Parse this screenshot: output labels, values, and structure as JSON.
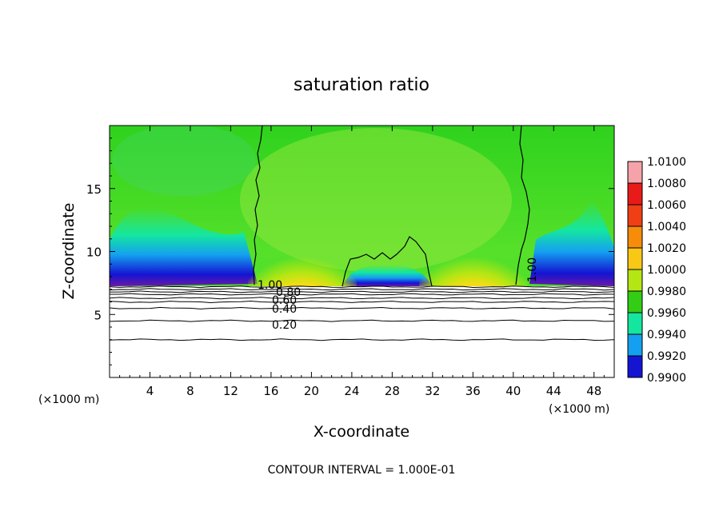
{
  "chart_data": {
    "type": "heatmap",
    "title": "saturation ratio",
    "xlabel": "X-coordinate",
    "ylabel": "Z-coordinate",
    "x_unit": "(×1000 m)",
    "x_unit_right": "(×1000 m)",
    "xlim": [
      0,
      50
    ],
    "ylim": [
      0,
      20
    ],
    "x_ticks": [
      "4",
      "8",
      "12",
      "16",
      "20",
      "24",
      "28",
      "32",
      "36",
      "40",
      "44",
      "48"
    ],
    "y_ticks": [
      "5",
      "10",
      "15"
    ],
    "footer": "CONTOUR INTERVAL = 1.000E-01",
    "colorbar": {
      "labels": [
        "1.0100",
        "1.0080",
        "1.0060",
        "1.0040",
        "1.0020",
        "1.0000",
        "0.9980",
        "0.9960",
        "0.9940",
        "0.9920",
        "0.9900"
      ],
      "colors": [
        "#f5a3a8",
        "#e81a1a",
        "#f03f14",
        "#f58c0a",
        "#f8c814",
        "#b4e614",
        "#32cd14",
        "#14e6a0",
        "#14a0f0",
        "#1414d2",
        "#6a18a8"
      ]
    },
    "contour_labels": [
      "1.00",
      "0.80",
      "0.60",
      "0.40",
      "0.20",
      "1.00"
    ],
    "contour_lines_below_7km": [
      7.2,
      7.0,
      6.8,
      6.6,
      6.3,
      6.0,
      5.5,
      4.5,
      3.0
    ],
    "grid": false,
    "legend_position": "right"
  }
}
